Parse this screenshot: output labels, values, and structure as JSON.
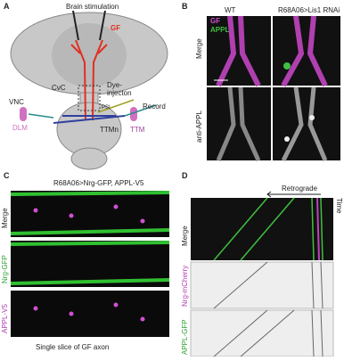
{
  "panels": {
    "a": {
      "label": "A",
      "brain_stimulation": "Brain stimulation",
      "gf": "GF",
      "cvc": "CvC",
      "dye": "Dye-\ninjecton",
      "vnc": "VNC",
      "dlm": "DLM",
      "record": "Record",
      "ttmn": "TTMn",
      "psi": "PSI",
      "ttm": "TTM"
    },
    "b": {
      "label": "B",
      "col_wt": "WT",
      "col_rnai": "R68A06>Lis1 RNAi",
      "legend_gf": "GF",
      "legend_appl": "APPL",
      "row_merge": "Merge",
      "row_anti": "anti-APPL"
    },
    "c": {
      "label": "C",
      "title": "R68A06>Nrg-GFP, APPL-V5",
      "row_merge": "Merge",
      "row_nrg": "Nrg-GFP",
      "row_appl": "APPL-V5",
      "caption": "Single slice of GF axon"
    },
    "d": {
      "label": "D",
      "retrograde": "Retrograde",
      "time": "Time",
      "row_merge": "Merge",
      "row_nrg": "Nrg-mCherry",
      "row_appl": "APPL-GFP"
    }
  }
}
